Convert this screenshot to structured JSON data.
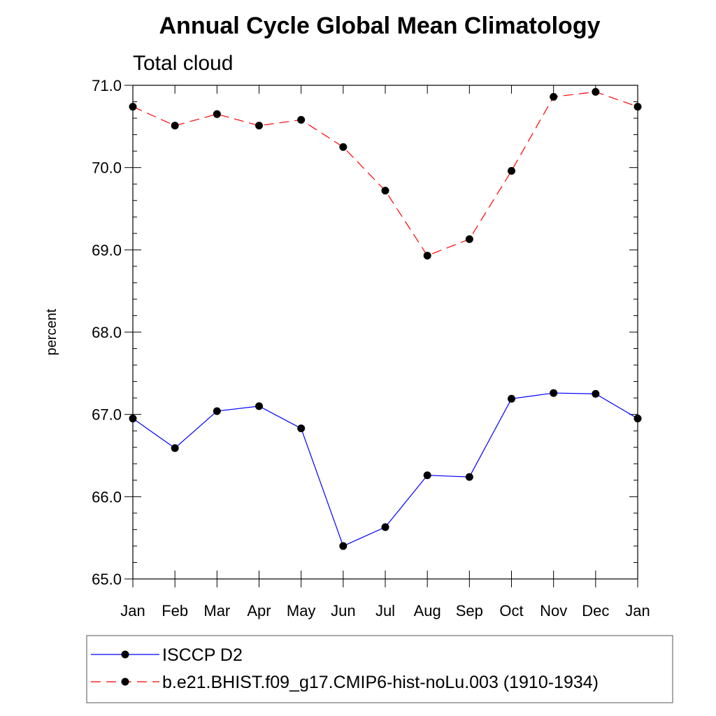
{
  "chart_data": {
    "type": "line",
    "title": "Annual Cycle Global Mean Climatology",
    "subtitle": "Total cloud",
    "xlabel": "",
    "ylabel": "percent",
    "categories": [
      "Jan",
      "Feb",
      "Mar",
      "Apr",
      "May",
      "Jun",
      "Jul",
      "Aug",
      "Sep",
      "Oct",
      "Nov",
      "Dec",
      "Jan"
    ],
    "ylim": [
      65.0,
      71.0
    ],
    "yticks": [
      65.0,
      66.0,
      67.0,
      68.0,
      69.0,
      70.0,
      71.0
    ],
    "ytick_labels": [
      "65.0",
      "66.0",
      "67.0",
      "68.0",
      "69.0",
      "70.0",
      "71.0"
    ],
    "grid": false,
    "legend_position": "bottom",
    "series": [
      {
        "name": "ISCCP D2",
        "color": "#0000ff",
        "line_style": "solid",
        "marker": "circle",
        "values": [
          66.95,
          66.59,
          67.04,
          67.1,
          66.83,
          65.4,
          65.63,
          66.26,
          66.24,
          67.19,
          67.26,
          67.25,
          66.95
        ]
      },
      {
        "name": "b.e21.BHIST.f09_g17.CMIP6-hist-noLu.003 (1910-1934)",
        "color": "#ff0000",
        "line_style": "dashed",
        "marker": "circle",
        "values": [
          70.74,
          70.51,
          70.65,
          70.51,
          70.58,
          70.25,
          69.72,
          68.93,
          69.13,
          69.96,
          70.86,
          70.92,
          70.74
        ]
      }
    ]
  }
}
